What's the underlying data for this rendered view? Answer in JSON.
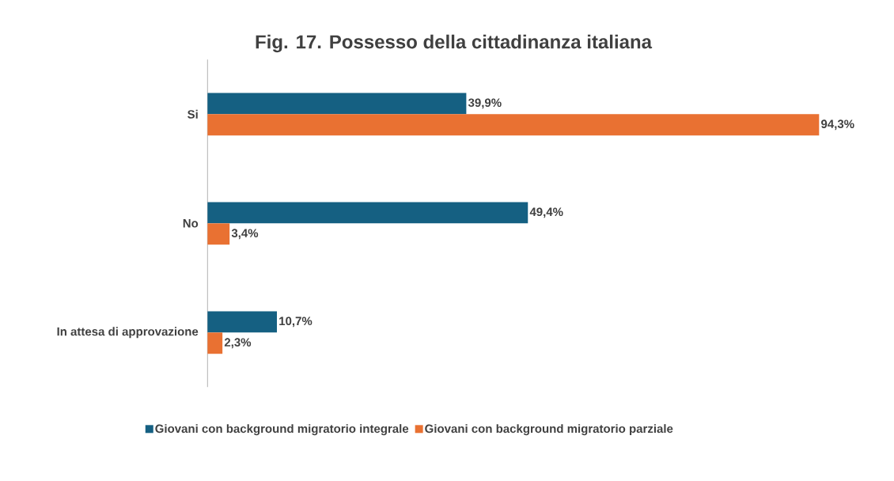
{
  "chart_data": {
    "type": "bar",
    "orientation": "horizontal",
    "title": "Fig. 17. Possesso della cittadinanza italiana",
    "categories": [
      "Si",
      "No",
      "In attesa di approvazione"
    ],
    "series": [
      {
        "name": "Giovani con background migratorio integrale",
        "color": "#156082",
        "values": [
          39.9,
          49.4,
          10.7
        ],
        "value_labels": [
          "39,9%",
          "49,4%",
          "10,7%"
        ]
      },
      {
        "name": "Giovani con background migratorio parziale",
        "color": "#e97132",
        "values": [
          94.3,
          3.4,
          2.3
        ],
        "value_labels": [
          "94,3%",
          "3,4%",
          "2,3%"
        ]
      }
    ],
    "legend": "bottom",
    "grid": false
  }
}
